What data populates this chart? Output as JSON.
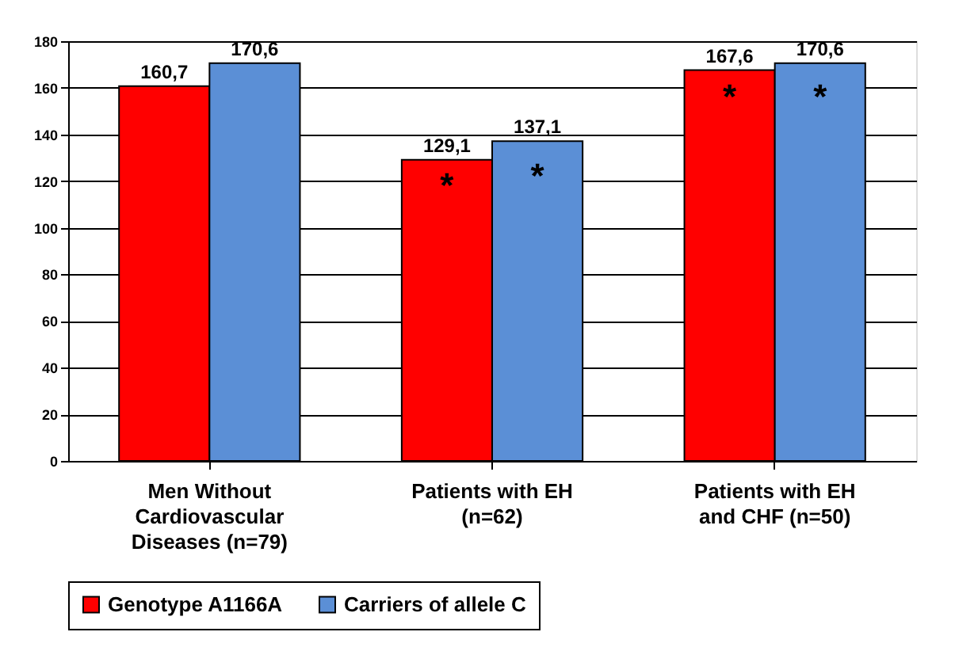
{
  "chart_data": {
    "type": "bar",
    "categories": [
      "Men Without\nCardiovascular\nDiseases (n=79)",
      "Patients with EH\n(n=62)",
      "Patients with EH\nand CHF  (n=50)"
    ],
    "series": [
      {
        "name": "Genotype A1166A",
        "color": "#ff0000",
        "values": [
          160.7,
          129.1,
          167.6
        ],
        "value_labels": [
          "160,7",
          "129,1",
          "167,6"
        ]
      },
      {
        "name": "Carriers of allele C",
        "color": "#5b8fd6",
        "values": [
          170.6,
          137.1,
          170.6
        ],
        "value_labels": [
          "170,6",
          "137,1",
          "170,6"
        ]
      }
    ],
    "annotations": [
      {
        "text": "*",
        "x": "Patients with EH\n(n=62)",
        "y": 118
      },
      {
        "text": "*",
        "x": "Patients with EH\n(n=62)",
        "y": 122
      },
      {
        "text": "*",
        "x": "Patients with EH\nand CHF  (n=50)",
        "y": 156
      },
      {
        "text": "*",
        "x": "Patients with EH\nand CHF  (n=50)",
        "y": 156
      }
    ],
    "ylim": [
      0,
      180
    ],
    "yticks": [
      0,
      20,
      40,
      60,
      80,
      100,
      120,
      140,
      160,
      180
    ],
    "grid": "y",
    "legend": "bottom"
  }
}
